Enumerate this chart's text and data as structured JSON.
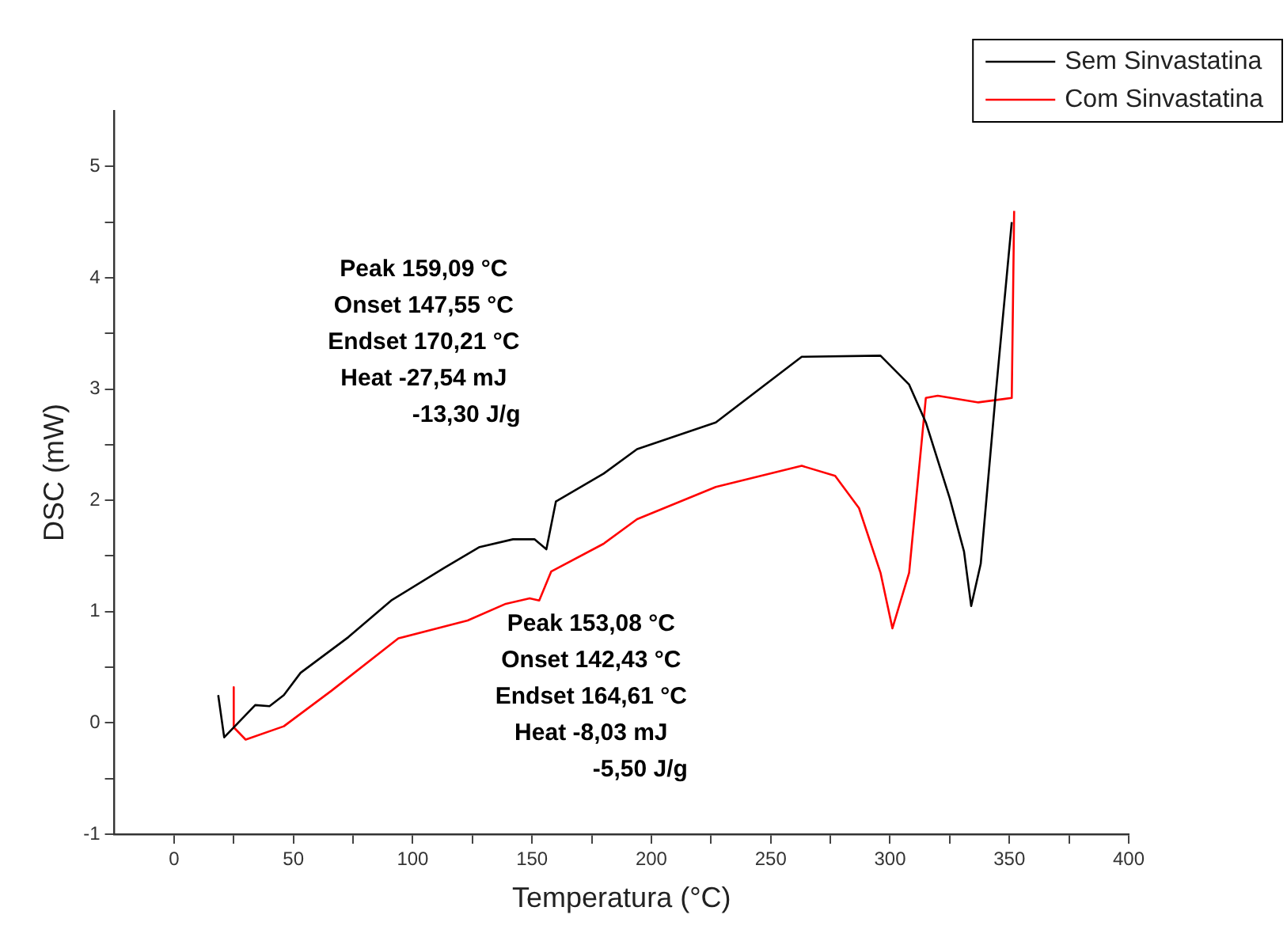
{
  "chart_data": {
    "type": "line",
    "xlabel": "Temperatura (°C)",
    "ylabel": "DSC (mW)",
    "xlim": [
      -25,
      400
    ],
    "xticks": [
      0,
      {
        "value": 25,
        "label": null
      },
      50,
      {
        "value": 75,
        "label": null
      },
      100,
      {
        "value": 125,
        "label": null
      },
      150,
      {
        "value": 175,
        "label": null
      },
      200,
      {
        "value": 225,
        "label": null
      },
      250,
      {
        "value": 275,
        "label": null
      },
      300,
      {
        "value": 325,
        "label": null
      },
      350,
      {
        "value": 375,
        "label": null
      },
      400
    ],
    "ylim": [
      -1,
      5.5
    ],
    "yticks": [
      -1,
      {
        "value": -0.5,
        "label": null
      },
      0,
      {
        "value": 0.5,
        "label": null
      },
      1,
      {
        "value": 1.5,
        "label": null
      },
      2,
      {
        "value": 2.5,
        "label": null
      },
      3,
      {
        "value": 3.5,
        "label": null
      },
      4,
      {
        "value": 4.5,
        "label": null
      },
      5
    ],
    "grid": false,
    "legend": "top right",
    "marker": "none",
    "line_style": "solid",
    "series": [
      {
        "name": "Sem Sinvastatina",
        "color": "#000000",
        "x": [
          18.5,
          21,
          34,
          40,
          46,
          53,
          73,
          91,
          113,
          128,
          142,
          151,
          156,
          160,
          180,
          194,
          227,
          263,
          296,
          308,
          315,
          325,
          331,
          334,
          338,
          344,
          351
        ],
        "values": [
          0.25,
          -0.13,
          0.16,
          0.15,
          0.25,
          0.45,
          0.77,
          1.1,
          1.39,
          1.58,
          1.65,
          1.65,
          1.56,
          1.99,
          2.24,
          2.46,
          2.7,
          3.29,
          3.3,
          3.04,
          2.7,
          2.02,
          1.54,
          1.05,
          1.43,
          2.89,
          4.5
        ]
      },
      {
        "name": "Com Sinvastatina",
        "color": "#ff0000",
        "x": [
          25,
          25,
          30,
          46,
          66,
          94,
          123,
          139,
          149,
          153,
          158,
          180,
          194,
          227,
          263,
          277,
          287,
          296,
          301,
          308,
          315,
          320,
          337,
          351,
          352
        ],
        "values": [
          0.32,
          -0.04,
          -0.15,
          -0.03,
          0.29,
          0.76,
          0.92,
          1.07,
          1.12,
          1.1,
          1.36,
          1.61,
          1.83,
          2.12,
          2.31,
          2.22,
          1.93,
          1.35,
          0.85,
          1.35,
          2.92,
          2.94,
          2.88,
          2.92,
          4.6
        ]
      }
    ],
    "annotations": [
      "Peak 159,09 °C\nOnset 147,55 °C\nEndset 170,21 °C\nHeat -27,54 mJ\n-13,30 J/g",
      "Peak 153,08 °C\nOnset 142,43 °C\nEndset 164,61 °C\nHeat -8,03 mJ\n-5,50 J/g"
    ]
  }
}
